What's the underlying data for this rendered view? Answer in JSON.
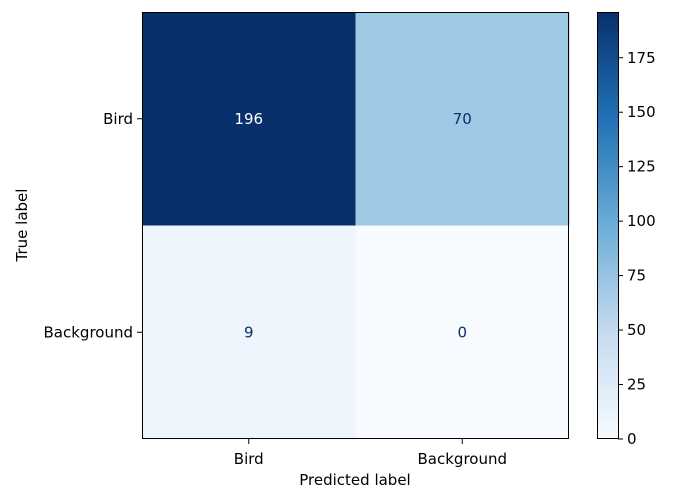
{
  "chart_data": {
    "type": "heatmap",
    "title": "",
    "xlabel": "Predicted label",
    "ylabel": "True label",
    "x_categories": [
      "Bird",
      "Background"
    ],
    "y_categories": [
      "Bird",
      "Background"
    ],
    "values": [
      [
        196,
        70
      ],
      [
        9,
        0
      ]
    ],
    "colormap": "Blues",
    "colorbar": {
      "vmin": 0,
      "vmax": 196,
      "ticks": [
        0,
        25,
        50,
        75,
        100,
        125,
        150,
        175
      ]
    },
    "grid": false,
    "colors": {
      "cmap_low": "#f7fbff",
      "cmap_mid_low": "#c6dbef",
      "cmap_mid": "#6baed6",
      "cmap_mid_high": "#2171b5",
      "cmap_high": "#08306b",
      "text_dark": "#08306b",
      "text_light": "#ffffff"
    }
  }
}
